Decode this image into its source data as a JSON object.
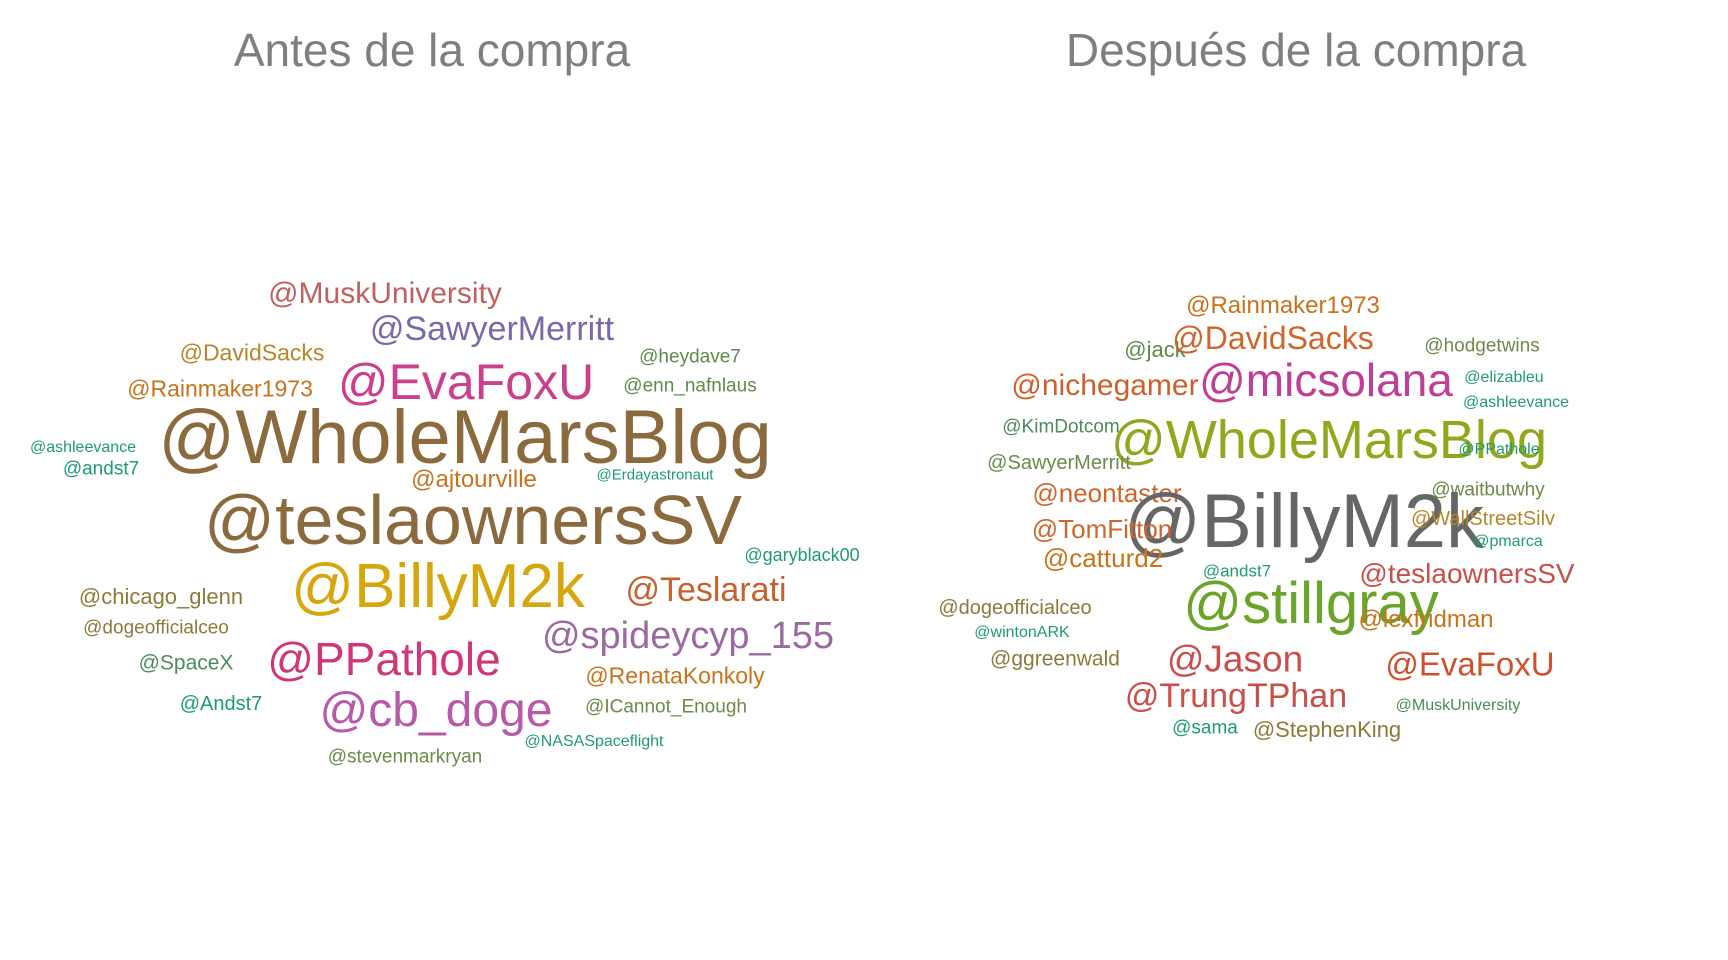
{
  "panels": [
    {
      "title": "Antes de la compra",
      "words": [
        {
          "text": "@MuskUniversity",
          "color": "#c06060"
        },
        {
          "text": "@SawyerMerritt",
          "color": "#7a68a8"
        },
        {
          "text": "@DavidSacks",
          "color": "#b8862a"
        },
        {
          "text": "@heydave7",
          "color": "#5e8a4a"
        },
        {
          "text": "@EvaFoxU",
          "color": "#cc3f8a"
        },
        {
          "text": "@Rainmaker1973",
          "color": "#c8731c"
        },
        {
          "text": "@enn_nafnlaus",
          "color": "#5e8a4a"
        },
        {
          "text": "@WholeMarsBlog",
          "color": "#8b6a3e"
        },
        {
          "text": "@ashleevance",
          "color": "#1f9a78"
        },
        {
          "text": "@andst7",
          "color": "#1f9a78"
        },
        {
          "text": "@ajtourville",
          "color": "#c8731c"
        },
        {
          "text": "@Erdayastronaut",
          "color": "#1f9a78"
        },
        {
          "text": "@teslaownersSV",
          "color": "#8b6a3e"
        },
        {
          "text": "@garyblack00",
          "color": "#1f9a78"
        },
        {
          "text": "@BillyM2k",
          "color": "#d6a70c"
        },
        {
          "text": "@Teslarati",
          "color": "#c8602c"
        },
        {
          "text": "@chicago_glenn",
          "color": "#8d7a3a"
        },
        {
          "text": "@dogeofficialceo",
          "color": "#8d7a3a"
        },
        {
          "text": "@spideycyp_155",
          "color": "#9b6aa0"
        },
        {
          "text": "@PPathole",
          "color": "#d0377a"
        },
        {
          "text": "@SpaceX",
          "color": "#4e8a5c"
        },
        {
          "text": "@RenataKonkoly",
          "color": "#c8731c"
        },
        {
          "text": "@Andst7",
          "color": "#1f9a78"
        },
        {
          "text": "@cb_doge",
          "color": "#b75aaa"
        },
        {
          "text": "@ICannot_Enough",
          "color": "#6e8a4a"
        },
        {
          "text": "@NASASpaceflight",
          "color": "#1f9a78"
        },
        {
          "text": "@stevenmarkryan",
          "color": "#6e8a4a"
        }
      ]
    },
    {
      "title": "Después de la compra",
      "words": [
        {
          "text": "@Rainmaker1973",
          "color": "#c8731c"
        },
        {
          "text": "@jack",
          "color": "#5e8a4a"
        },
        {
          "text": "@DavidSacks",
          "color": "#d0652c"
        },
        {
          "text": "@hodgetwins",
          "color": "#6e8a4a"
        },
        {
          "text": "@nichegamer",
          "color": "#d0602a"
        },
        {
          "text": "@micsolana",
          "color": "#c03f96"
        },
        {
          "text": "@elizableu",
          "color": "#1f9a78"
        },
        {
          "text": "@ashleevance",
          "color": "#1f9a78"
        },
        {
          "text": "@KimDotcom",
          "color": "#4e8a5c"
        },
        {
          "text": "@WholeMarsBlog",
          "color": "#92a81c"
        },
        {
          "text": "@PPathole",
          "color": "#1f9a78"
        },
        {
          "text": "@SawyerMerritt",
          "color": "#6e8a4a"
        },
        {
          "text": "@neontaster",
          "color": "#d0652c"
        },
        {
          "text": "@waitbutwhy",
          "color": "#6e8a4a"
        },
        {
          "text": "@BillyM2k",
          "color": "#666666"
        },
        {
          "text": "@TomFitton",
          "color": "#d0652c"
        },
        {
          "text": "@WallStreetSilv",
          "color": "#b8862a"
        },
        {
          "text": "@catturd2",
          "color": "#c8731c"
        },
        {
          "text": "@pmarca",
          "color": "#1f9a78"
        },
        {
          "text": "@andst7",
          "color": "#1f9a78"
        },
        {
          "text": "@teslaownersSV",
          "color": "#c9504a"
        },
        {
          "text": "@dogeofficialceo",
          "color": "#8d7a3a"
        },
        {
          "text": "@stillgray",
          "color": "#6aa52a"
        },
        {
          "text": "@lexfridman",
          "color": "#c8731c"
        },
        {
          "text": "@wintonARK",
          "color": "#1f9a78"
        },
        {
          "text": "@ggreenwald",
          "color": "#8d7a3a"
        },
        {
          "text": "@Jason",
          "color": "#c9504a"
        },
        {
          "text": "@EvaFoxU",
          "color": "#d0502a"
        },
        {
          "text": "@TrungTPhan",
          "color": "#c9504a"
        },
        {
          "text": "@MuskUniversity",
          "color": "#4e8a5c"
        },
        {
          "text": "@sama",
          "color": "#1f9a78"
        },
        {
          "text": "@StephenKing",
          "color": "#8d7a3a"
        }
      ]
    }
  ]
}
